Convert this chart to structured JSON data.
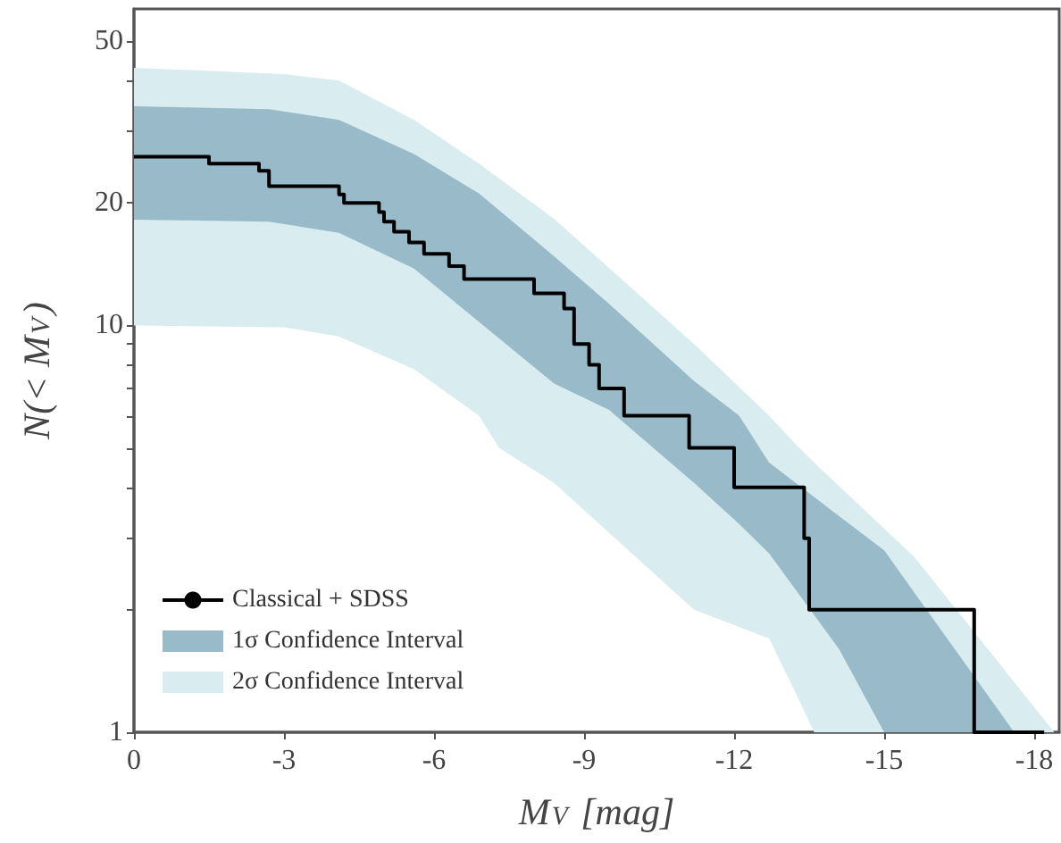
{
  "chart_data": {
    "type": "step",
    "xlabel": "M$_{V}$ [mag]",
    "ylabel": "N(< M$_{V}$)",
    "log": "y",
    "grid": false,
    "legend": "bottom left",
    "line_style": "solid",
    "xlim": [
      0,
      -18.5
    ],
    "xticks": [
      0,
      -3,
      -6,
      -9,
      -12,
      -15,
      -18
    ],
    "ylim": [
      1,
      60
    ],
    "yticks": [
      1,
      {
        "value": 2,
        "label": null
      },
      {
        "value": 3,
        "label": null
      },
      {
        "value": 4,
        "label": null
      },
      {
        "value": 5,
        "label": null
      },
      {
        "value": 6,
        "label": null
      },
      {
        "value": 7,
        "label": null
      },
      {
        "value": 8,
        "label": null
      },
      {
        "value": 9,
        "label": null
      },
      10,
      20,
      {
        "value": 30,
        "label": null
      },
      {
        "value": 40,
        "label": null
      },
      50
    ],
    "series": [
      {
        "name": "Classical + SDSS",
        "color": "#000000",
        "x": [
          0,
          -1.5,
          -2.5,
          -2.7,
          -4.1,
          -4.2,
          -4.9,
          -5.0,
          -5.2,
          -5.5,
          -5.8,
          -6.3,
          -6.6,
          -8.0,
          -8.6,
          -8.8,
          -9.1,
          -9.3,
          -9.8,
          -11.1,
          -12.0,
          -13.4,
          -13.5,
          -16.8,
          -18.2
        ],
        "values": [
          26,
          25,
          24,
          22,
          21,
          20,
          19,
          18,
          17,
          16,
          15,
          14,
          13,
          12,
          11,
          9,
          8,
          7,
          6,
          5,
          4,
          3,
          2,
          1,
          1
        ]
      },
      {
        "type": "area",
        "name": "1σ Confidence Interval",
        "color": "#98bac9",
        "x": [
          0,
          -2.7,
          -4.1,
          -5.6,
          -6.9,
          -8.4,
          -9.5,
          -11.2,
          -12.1,
          -12.7,
          -14.1,
          -15.0,
          -17.6
        ],
        "values": [
          null,
          null,
          null,
          null,
          null,
          null,
          null,
          null,
          null,
          null,
          null,
          null,
          null
        ],
        "upper": [
          34.6,
          34,
          32,
          26.4,
          21.1,
          14.8,
          11.3,
          7.3,
          6.0,
          4.6,
          3.4,
          2.8,
          1
        ],
        "lower": [
          18.2,
          18,
          16.9,
          13.8,
          10.2,
          7.2,
          6.2,
          4.1,
          3.25,
          2.75,
          1.6,
          1,
          1
        ]
      },
      {
        "type": "area",
        "name": "2σ Confidence Interval",
        "color": "#d9ecef",
        "x": [
          0,
          -3,
          -4.1,
          -5.6,
          -6.9,
          -7.3,
          -8.4,
          -11.2,
          -12.7,
          -13.3,
          -13.6,
          -15.6,
          -18.4
        ],
        "values": [
          null,
          null,
          null,
          null,
          null,
          null,
          null,
          null,
          null,
          null,
          null,
          null,
          null
        ],
        "upper": [
          43,
          41.5,
          40,
          32,
          25,
          23,
          18.3,
          9,
          6,
          5,
          4.6,
          2.7,
          1
        ],
        "lower": [
          10,
          9.9,
          9.4,
          7.8,
          6,
          5,
          4.1,
          2.0,
          1.7,
          1.2,
          1,
          1,
          1
        ]
      }
    ]
  }
}
